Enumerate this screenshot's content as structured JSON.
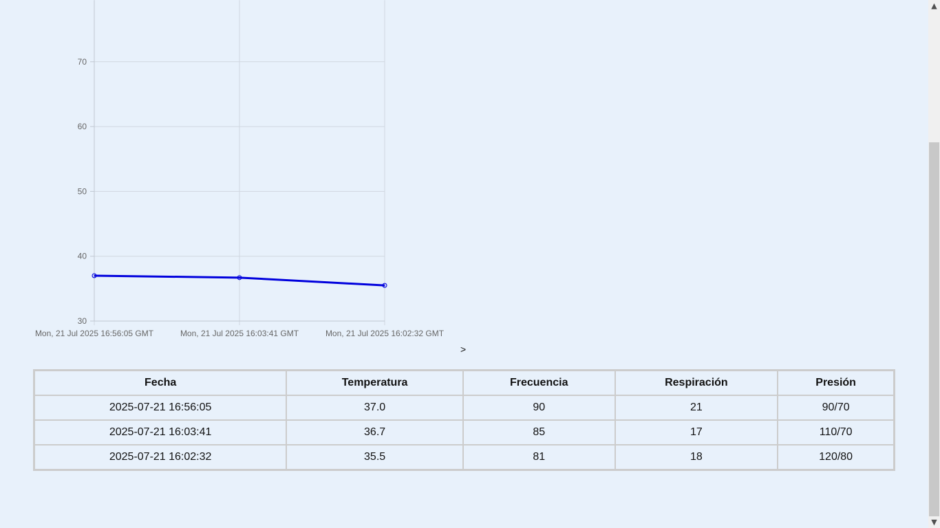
{
  "chart_data": {
    "type": "line",
    "categories": [
      "Mon, 21 Jul 2025 16:56:05 GMT",
      "Mon, 21 Jul 2025 16:03:41 GMT",
      "Mon, 21 Jul 2025 16:02:32 GMT"
    ],
    "series": [
      {
        "values": [
          37.0,
          36.7,
          35.5
        ],
        "color": "#0000dd"
      }
    ],
    "y_ticks": [
      30,
      40,
      50,
      60,
      70
    ],
    "ylim": [
      30,
      79.5
    ],
    "grid": true
  },
  "stray_text": ">",
  "table": {
    "headers": [
      "Fecha",
      "Temperatura",
      "Frecuencia",
      "Respiración",
      "Presión"
    ],
    "rows": [
      [
        "2025-07-21 16:56:05",
        "37.0",
        "90",
        "21",
        "90/70"
      ],
      [
        "2025-07-21 16:03:41",
        "36.7",
        "85",
        "17",
        "110/70"
      ],
      [
        "2025-07-21 16:02:32",
        "35.5",
        "81",
        "18",
        "120/80"
      ]
    ]
  },
  "scrollbar": {
    "up_icon": "chevron-up-icon",
    "down_icon": "chevron-down-icon"
  }
}
